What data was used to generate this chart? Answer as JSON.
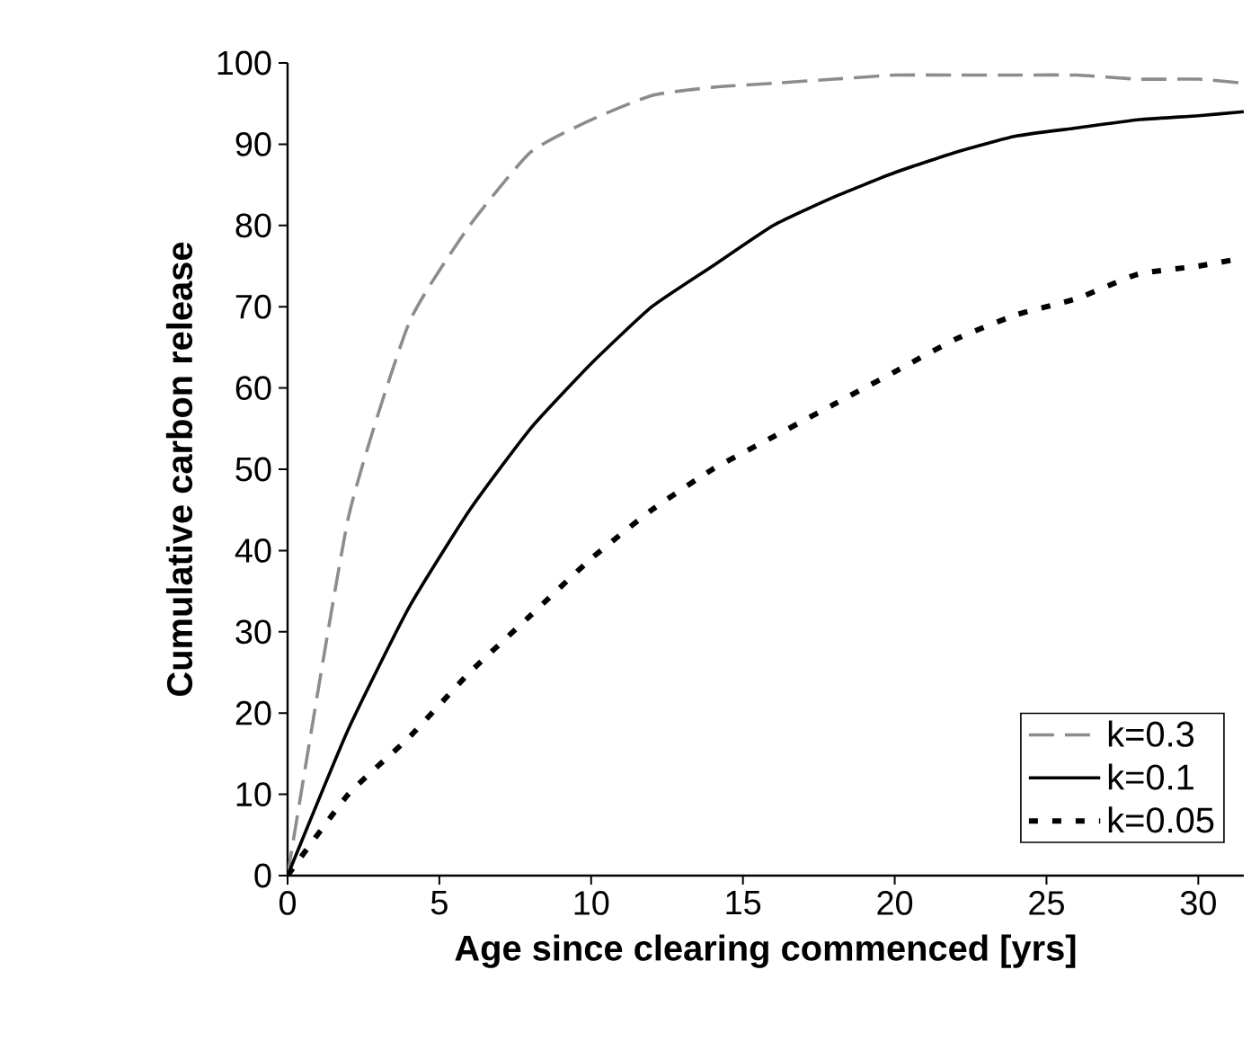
{
  "chart_data": {
    "type": "line",
    "xlabel": "Age since clearing commenced [yrs]",
    "ylabel": "Cumulative carbon release",
    "xlim": [
      0,
      31.5
    ],
    "xticks": [
      0,
      5,
      10,
      15,
      20,
      25,
      30
    ],
    "ylim": [
      0,
      100
    ],
    "yticks": [
      0,
      10,
      20,
      30,
      40,
      50,
      60,
      70,
      80,
      90,
      100
    ],
    "grid": false,
    "legend": "bottom right",
    "marker": "none",
    "x": [
      0,
      2,
      4,
      6,
      8,
      10,
      12,
      14,
      16,
      18,
      20,
      22,
      24,
      26,
      28,
      30,
      31.5
    ],
    "series": [
      {
        "name": "k=0.3",
        "color": "#8c8c8c",
        "line_style": "dashed",
        "values": [
          0,
          44,
          68,
          80,
          89,
          93,
          96,
          97,
          97.5,
          98,
          98.5,
          98.5,
          98.5,
          98.5,
          98,
          98,
          97.5
        ]
      },
      {
        "name": "k=0.1",
        "color": "#000000",
        "line_style": "solid",
        "values": [
          0,
          18,
          33,
          45,
          55,
          63,
          70,
          75,
          80,
          83.5,
          86.5,
          89,
          91,
          92,
          93,
          93.5,
          94
        ]
      },
      {
        "name": "k=0.05",
        "color": "#000000",
        "line_style": "dotted",
        "values": [
          0,
          10,
          17,
          25,
          32,
          39,
          45,
          50,
          54,
          58,
          62,
          66,
          69,
          71,
          74,
          75,
          76
        ]
      }
    ]
  }
}
